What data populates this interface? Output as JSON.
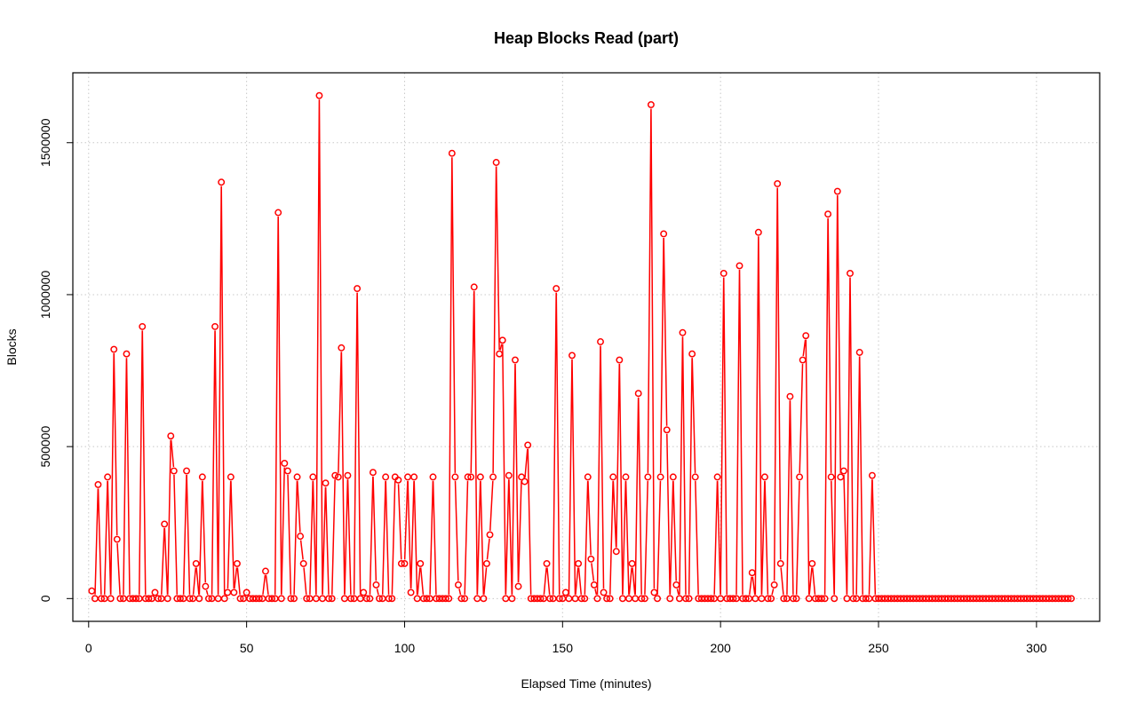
{
  "chart_data": {
    "type": "line",
    "title": "Heap Blocks Read (part)",
    "xlabel": "Elapsed Time (minutes)",
    "ylabel": "Blocks",
    "xlim": [
      -5,
      320
    ],
    "ylim": [
      -75000,
      1730000
    ],
    "xticks": [
      0,
      50,
      100,
      150,
      200,
      250,
      300
    ],
    "yticks": [
      0,
      500000,
      1000000,
      1500000
    ],
    "xtick_labels": [
      "0",
      "50",
      "100",
      "150",
      "200",
      "250",
      "300"
    ],
    "ytick_labels": [
      "0",
      "500000",
      "1000000",
      "1500000"
    ],
    "grid": true,
    "color": "#ff0000",
    "series": [
      {
        "values": [
          25000,
          0,
          375000,
          0,
          0,
          400000,
          0,
          820000,
          195000,
          0,
          0,
          805000,
          0,
          0,
          0,
          0,
          895000,
          0,
          0,
          0,
          20000,
          0,
          0,
          245000,
          0,
          535000,
          420000,
          0,
          0,
          0,
          420000,
          0,
          0,
          115000,
          0,
          400000,
          40000,
          0,
          0,
          895000,
          0,
          1370000,
          0,
          20000,
          400000,
          20000,
          115000,
          0,
          0,
          20000,
          0,
          0,
          0,
          0,
          0,
          90000,
          0,
          0,
          0,
          1270000,
          0,
          445000,
          420000,
          0,
          0,
          400000,
          205000,
          115000,
          0,
          0,
          400000,
          0,
          1655000,
          0,
          380000,
          0,
          0,
          405000,
          400000,
          825000,
          0,
          405000,
          0,
          0,
          1020000,
          0,
          20000,
          0,
          0,
          415000,
          45000,
          0,
          0,
          400000,
          0,
          0,
          400000,
          390000,
          115000,
          115000,
          400000,
          20000,
          400000,
          0,
          115000,
          0,
          0,
          0,
          400000,
          0,
          0,
          0,
          0,
          0,
          1465000,
          400000,
          45000,
          0,
          0,
          400000,
          400000,
          1025000,
          0,
          400000,
          0,
          115000,
          210000,
          400000,
          1435000,
          805000,
          850000,
          0,
          405000,
          0,
          785000,
          40000,
          400000,
          385000,
          505000,
          0,
          0,
          0,
          0,
          0,
          115000,
          0,
          0,
          1020000,
          0,
          0,
          20000,
          0,
          800000,
          0,
          115000,
          0,
          0,
          400000,
          130000,
          45000,
          0,
          845000,
          20000,
          0,
          0,
          400000,
          155000,
          785000,
          0,
          400000,
          0,
          115000,
          0,
          675000,
          0,
          0,
          400000,
          1625000,
          20000,
          0,
          400000,
          1200000,
          555000,
          0,
          400000,
          45000,
          0,
          875000,
          0,
          0,
          805000,
          400000,
          0,
          0,
          0,
          0,
          0,
          0,
          400000,
          0,
          1070000,
          0,
          0,
          0,
          0,
          1095000,
          0,
          0,
          0,
          85000,
          0,
          1205000,
          0,
          400000,
          0,
          0,
          45000,
          1365000,
          115000,
          0,
          0,
          665000,
          0,
          0,
          400000,
          785000,
          865000,
          0,
          115000,
          0,
          0,
          0,
          0,
          1265000,
          400000,
          0,
          1340000,
          400000,
          420000,
          0,
          1070000,
          0,
          0,
          810000,
          0,
          0,
          0,
          405000,
          0,
          0,
          0,
          0,
          0,
          0,
          0,
          0,
          0,
          0,
          0,
          0,
          0,
          0,
          0,
          0,
          0,
          0,
          0,
          0,
          0,
          0,
          0,
          0,
          0,
          0,
          0,
          0,
          0,
          0,
          0,
          0,
          0,
          0,
          0,
          0,
          0,
          0,
          0,
          0,
          0,
          0,
          0,
          0,
          0,
          0,
          0,
          0,
          0,
          0,
          0,
          0,
          0,
          0,
          0,
          0,
          0,
          0,
          0,
          0,
          0,
          0,
          0
        ]
      }
    ]
  }
}
